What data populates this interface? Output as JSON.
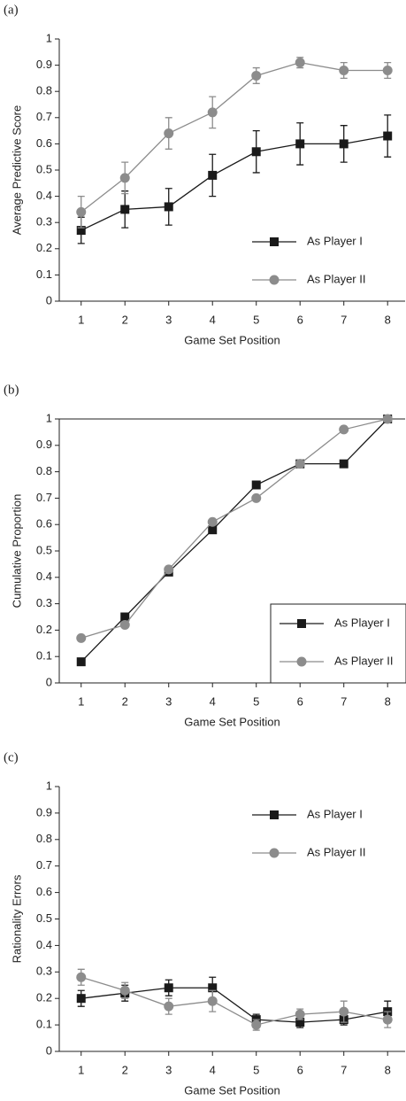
{
  "chart_data": [
    {
      "type": "line",
      "label": "(a)",
      "y_label": "Average Predictive Score",
      "x_label": "Game Set Position",
      "x": [
        1,
        2,
        3,
        4,
        5,
        6,
        7,
        8
      ],
      "xlim": [
        0.5,
        8.4
      ],
      "xticks": [
        1,
        2,
        3,
        4,
        5,
        6,
        7,
        8
      ],
      "ylim": [
        0,
        1
      ],
      "yticks": [
        0,
        0.1,
        0.2,
        0.3,
        0.4,
        0.5,
        0.6,
        0.7,
        0.8,
        0.9,
        1
      ],
      "grid": false,
      "legend": "lower right",
      "legend_frame": false,
      "top_line": false,
      "series": [
        {
          "name": "As Player I",
          "color": "#1a1a1a",
          "marker": "square",
          "values": [
            0.27,
            0.35,
            0.36,
            0.48,
            0.57,
            0.6,
            0.6,
            0.63
          ],
          "errors": [
            0.05,
            0.07,
            0.07,
            0.08,
            0.08,
            0.08,
            0.07,
            0.08
          ]
        },
        {
          "name": "As Player II",
          "color": "#8c8c8c",
          "marker": "circle",
          "values": [
            0.34,
            0.47,
            0.64,
            0.72,
            0.86,
            0.91,
            0.88,
            0.88
          ],
          "errors": [
            0.06,
            0.06,
            0.06,
            0.06,
            0.03,
            0.02,
            0.03,
            0.03
          ]
        }
      ]
    },
    {
      "type": "line",
      "label": "(b)",
      "y_label": "Cumulative Proportion",
      "x_label": "Game Set Position",
      "x": [
        1,
        2,
        3,
        4,
        5,
        6,
        7,
        8
      ],
      "xlim": [
        0.5,
        8.4
      ],
      "xticks": [
        1,
        2,
        3,
        4,
        5,
        6,
        7,
        8
      ],
      "ylim": [
        0,
        1
      ],
      "yticks": [
        0,
        0.1,
        0.2,
        0.3,
        0.4,
        0.5,
        0.6,
        0.7,
        0.8,
        0.9,
        1
      ],
      "grid": false,
      "legend": "lower right",
      "legend_frame": true,
      "top_line": true,
      "series": [
        {
          "name": "As Player I",
          "color": "#1a1a1a",
          "marker": "square",
          "values": [
            0.08,
            0.25,
            0.42,
            0.58,
            0.75,
            0.83,
            0.83,
            1
          ]
        },
        {
          "name": "As Player II",
          "color": "#8c8c8c",
          "marker": "circle",
          "values": [
            0.17,
            0.22,
            0.43,
            0.61,
            0.7,
            0.83,
            0.96,
            1
          ]
        }
      ]
    },
    {
      "type": "line",
      "label": "(c)",
      "y_label": "Rationality Errors",
      "x_label": "Game Set Position",
      "x": [
        1,
        2,
        3,
        4,
        5,
        6,
        7,
        8
      ],
      "xlim": [
        0.5,
        8.4
      ],
      "xticks": [
        1,
        2,
        3,
        4,
        5,
        6,
        7,
        8
      ],
      "ylim": [
        0,
        1
      ],
      "yticks": [
        0,
        0.1,
        0.2,
        0.3,
        0.4,
        0.5,
        0.6,
        0.7,
        0.8,
        0.9,
        1
      ],
      "grid": false,
      "legend": "upper right",
      "legend_frame": false,
      "top_line": false,
      "series": [
        {
          "name": "As Player I",
          "color": "#1a1a1a",
          "marker": "square",
          "values": [
            0.2,
            0.22,
            0.24,
            0.24,
            0.12,
            0.11,
            0.12,
            0.15
          ],
          "errors": [
            0.03,
            0.03,
            0.03,
            0.04,
            0.02,
            0.02,
            0.02,
            0.04
          ]
        },
        {
          "name": "As Player II",
          "color": "#8c8c8c",
          "marker": "circle",
          "values": [
            0.28,
            0.23,
            0.17,
            0.19,
            0.1,
            0.14,
            0.15,
            0.12
          ],
          "errors": [
            0.03,
            0.03,
            0.03,
            0.04,
            0.02,
            0.02,
            0.04,
            0.03
          ]
        }
      ]
    }
  ]
}
